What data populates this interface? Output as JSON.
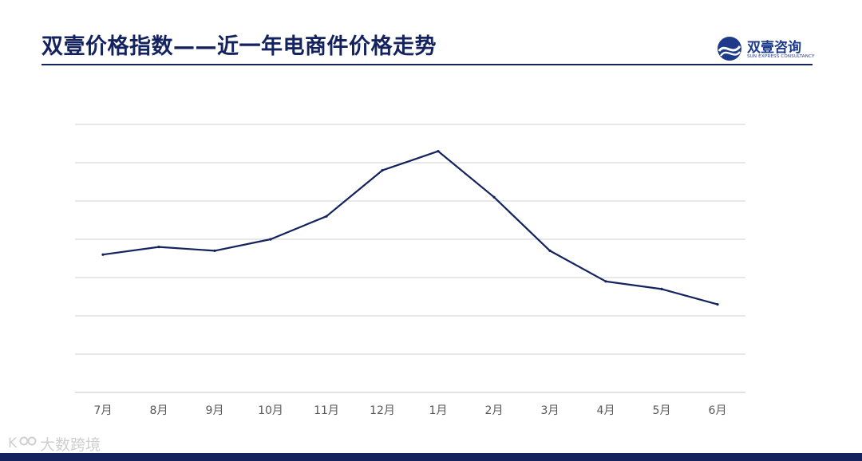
{
  "slide": {
    "title": "双壹价格指数——近一年电商件价格走势"
  },
  "logo": {
    "name": "双壹咨询",
    "subtitle": "SUN EXPRESS CONSULTANCY"
  },
  "watermark": {
    "text": "大数跨境"
  },
  "colors": {
    "accent": "#14235e",
    "line": "#14235e",
    "grid": "#d9d9d9",
    "tick_text": "#595959"
  },
  "chart_data": {
    "type": "line",
    "title": "",
    "xlabel": "",
    "ylabel": "",
    "categories": [
      "7月",
      "8月",
      "9月",
      "10月",
      "11月",
      "12月",
      "1月",
      "2月",
      "3月",
      "4月",
      "5月",
      "6月"
    ],
    "series": [
      {
        "values": [
          3.6,
          3.8,
          3.7,
          4.0,
          4.6,
          5.8,
          6.3,
          5.1,
          3.7,
          2.9,
          2.7,
          2.3
        ]
      }
    ],
    "ylim": [
      0,
      7
    ],
    "y_ticks_visible": false,
    "grid": true,
    "legend": "none"
  }
}
